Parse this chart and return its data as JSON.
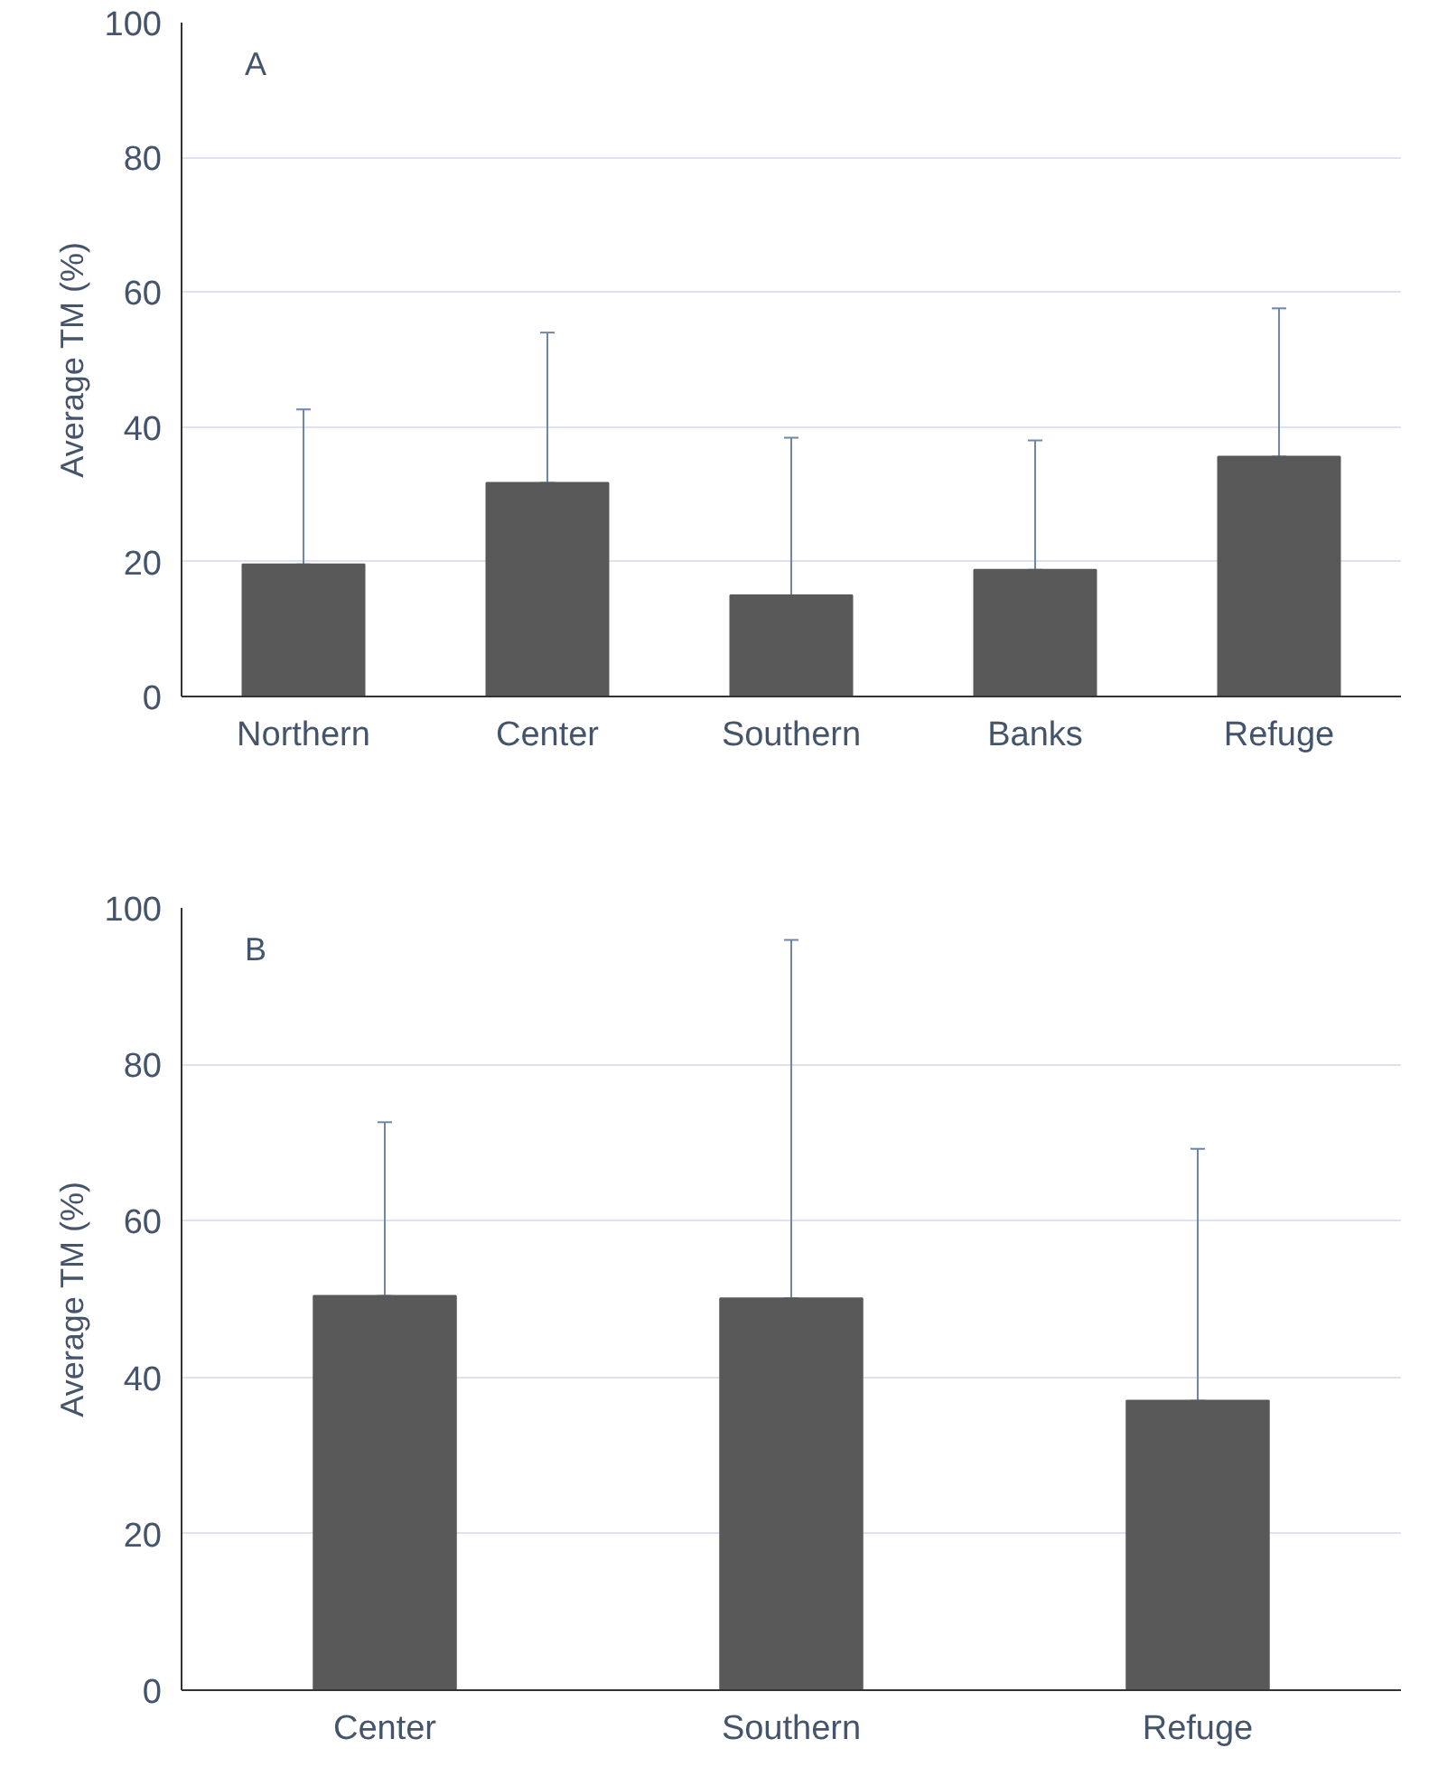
{
  "chart_data": [
    {
      "type": "bar",
      "annotations": [
        "A"
      ],
      "ylabel": "Average TM (%)",
      "categories": [
        "Northern",
        "Center",
        "Southern",
        "Banks",
        "Refuge"
      ],
      "color": "#595959",
      "values": [
        19.6,
        31.7,
        15.0,
        18.8,
        35.6
      ],
      "errors": [
        [
          19.6,
          42.6
        ],
        [
          31.7,
          54.0
        ],
        [
          15.0,
          38.4
        ],
        [
          18.8,
          38.0
        ],
        [
          35.6,
          57.6
        ]
      ],
      "ylim": [
        0,
        100
      ],
      "yticks": [
        0,
        20,
        40,
        60,
        80,
        100
      ],
      "grid": "y"
    },
    {
      "type": "bar",
      "annotations": [
        "B"
      ],
      "ylabel": "Average TM (%)",
      "categories": [
        "Center",
        "Southern",
        "Refuge"
      ],
      "color": "#595959",
      "values": [
        50.4,
        50.1,
        37.0
      ],
      "errors": [
        [
          50.4,
          72.6
        ],
        [
          50.1,
          95.9
        ],
        [
          37.0,
          69.2
        ]
      ],
      "ylim": [
        0,
        100
      ],
      "yticks": [
        0,
        20,
        40,
        60,
        80,
        100
      ],
      "grid": "y"
    }
  ]
}
